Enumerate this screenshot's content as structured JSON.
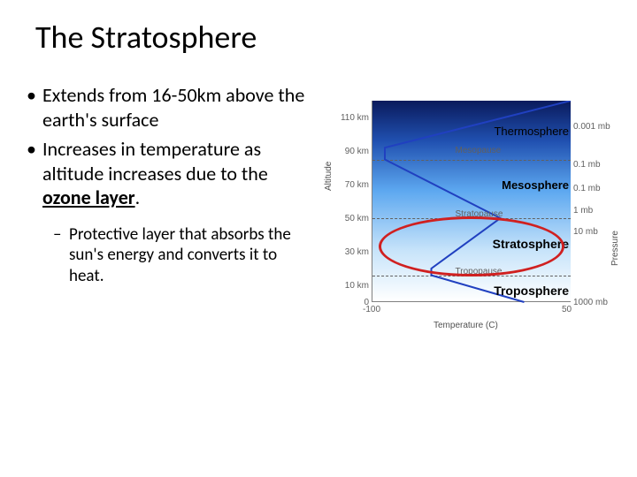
{
  "title": "The Stratosphere",
  "bullets": [
    "Extends from 16-50km above the earth's surface",
    "Increases in temperature as altitude increases due to the "
  ],
  "ozone_text": "ozone layer",
  "bullet_period": ".",
  "sub_bullet": "Protective layer that absorbs the sun's energy and converts it to heat.",
  "chart": {
    "type": "line",
    "axes": {
      "left_title": "Altitude",
      "right_title": "Pressure",
      "bottom_title": "Temperature (C)",
      "xlim": [
        -100,
        50
      ],
      "ylim_km": [
        0,
        120
      ],
      "y_ticks_left": [
        {
          "label": "110 km",
          "km": 110
        },
        {
          "label": "90 km",
          "km": 90
        },
        {
          "label": "70 km",
          "km": 70
        },
        {
          "label": "50 km",
          "km": 50
        },
        {
          "label": "30 km",
          "km": 30
        },
        {
          "label": "10 km",
          "km": 10
        },
        {
          "label": "0",
          "km": 0
        }
      ],
      "y_ticks_right": [
        {
          "label": "0.001 mb",
          "km": 105
        },
        {
          "label": "0.1 mb",
          "km": 82
        },
        {
          "label": "0.1 mb",
          "km": 68
        },
        {
          "label": "1 mb",
          "km": 55
        },
        {
          "label": "10 mb",
          "km": 42
        },
        {
          "label": "1000 mb",
          "km": 0
        }
      ],
      "x_ticks": [
        {
          "label": "-100",
          "c": -100
        },
        {
          "label": "50",
          "c": 50
        }
      ]
    },
    "layers": [
      {
        "name": "Thermosphere",
        "km": 102,
        "fontsize": 13,
        "weight": "normal"
      },
      {
        "name": "Mesopause",
        "km": 90,
        "fontsize": 10,
        "weight": "normal",
        "color": "#606060"
      },
      {
        "name": "Mesosphere",
        "km": 70,
        "fontsize": 13,
        "weight": "bold"
      },
      {
        "name": "Stratopause",
        "km": 52,
        "fontsize": 10,
        "weight": "normal",
        "color": "#606060"
      },
      {
        "name": "Stratosphere",
        "km": 35,
        "fontsize": 14,
        "weight": "bold"
      },
      {
        "name": "Tropopause",
        "km": 18,
        "fontsize": 10,
        "weight": "normal",
        "color": "#606060"
      },
      {
        "name": "Troposphere",
        "km": 7,
        "fontsize": 14,
        "weight": "bold"
      }
    ],
    "boundary_lines_km": [
      85,
      50,
      16
    ],
    "temp_profile": [
      {
        "c": 15,
        "km": 0
      },
      {
        "c": -55,
        "km": 16
      },
      {
        "c": -55,
        "km": 20
      },
      {
        "c": -3,
        "km": 50
      },
      {
        "c": -90,
        "km": 85
      },
      {
        "c": -90,
        "km": 92
      },
      {
        "c": 50,
        "km": 120
      }
    ],
    "line_color": "#2040c0",
    "line_width": 2,
    "sky_gradient": {
      "top": "#0a1a5c",
      "upper": "#2050b0",
      "mid": "#5da8f0",
      "lower": "#c8e4fa",
      "bottom": "#ffffff"
    },
    "highlight_ellipse": {
      "center_km": 33,
      "center_c": -25,
      "width_c": 140,
      "height_km": 36,
      "color": "#d02020",
      "stroke": 3
    }
  }
}
